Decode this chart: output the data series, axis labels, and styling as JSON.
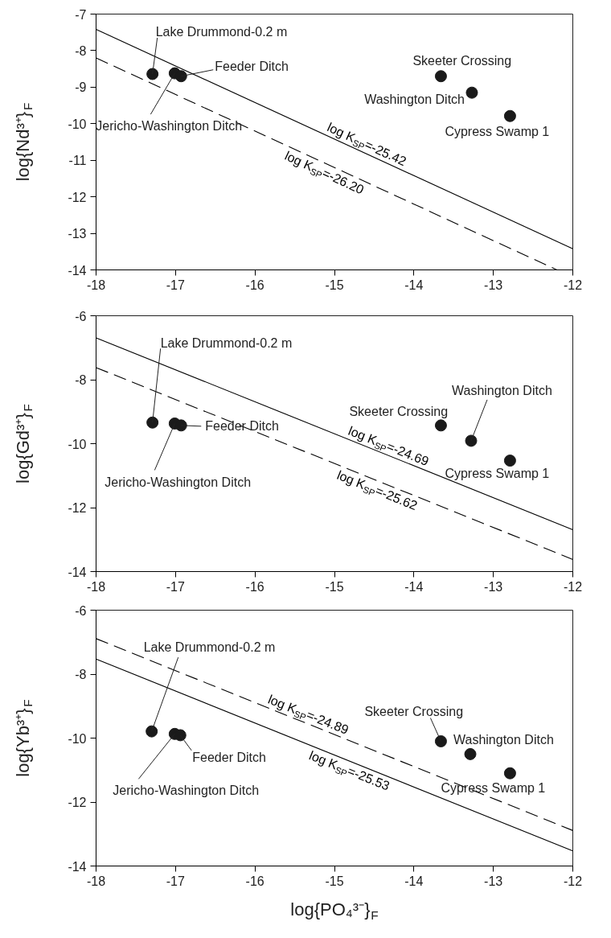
{
  "chart_data": [
    {
      "type": "scatter",
      "ylabel": "log{Nd³⁺}$_{F}$",
      "xlim": [
        -18,
        -12
      ],
      "xticks": [
        -18,
        -17,
        -16,
        -15,
        -14,
        -13,
        -12
      ],
      "ylim": [
        -14,
        -7
      ],
      "yticks": [
        -14,
        -13,
        -12,
        -11,
        -10,
        -9,
        -8,
        -7
      ],
      "grid": false,
      "series": [
        {
          "type": "scatter",
          "marker": "circle",
          "color": "#1a1a1a",
          "x": [
            -17.29,
            -17.01,
            -16.93,
            -13.66,
            -13.27,
            -12.79
          ],
          "values": [
            -8.64,
            -8.62,
            -8.7,
            -8.7,
            -9.15,
            -9.79
          ]
        },
        {
          "type": "line",
          "name": "log K$_{SP}$=-25.42",
          "color": "#000000",
          "line_style": "solid",
          "x": [
            -18,
            -12
          ],
          "values": [
            -7.42,
            -13.42
          ]
        },
        {
          "type": "line",
          "name": "log K$_{SP}$=-26.20",
          "color": "#000000",
          "line_style": "dashed",
          "x": [
            -18,
            -12.2
          ],
          "values": [
            -8.2,
            -14.0
          ]
        }
      ],
      "annotations": [
        {
          "text": "Lake Drummond-0.2 m",
          "x": -17.29,
          "y": -8.64
        },
        {
          "text": "Jericho-Washington Ditch",
          "x": -17.01,
          "y": -8.62
        },
        {
          "text": "Feeder Ditch",
          "x": -16.93,
          "y": -8.7
        },
        {
          "text": "Skeeter Crossing",
          "x": -13.66,
          "y": -8.7
        },
        {
          "text": "Washington Ditch",
          "x": -13.27,
          "y": -9.15
        },
        {
          "text": "Cypress Swamp 1",
          "x": -12.79,
          "y": -9.79
        }
      ]
    },
    {
      "type": "scatter",
      "ylabel": "log{Gd³⁺}$_{F}$",
      "xlim": [
        -18,
        -12
      ],
      "xticks": [
        -18,
        -17,
        -16,
        -15,
        -14,
        -13,
        -12
      ],
      "ylim": [
        -14,
        -6
      ],
      "yticks": [
        -14,
        -12,
        -10,
        -8,
        -6
      ],
      "grid": false,
      "series": [
        {
          "type": "scatter",
          "marker": "circle",
          "color": "#1a1a1a",
          "x": [
            -17.29,
            -17.01,
            -16.93,
            -13.66,
            -13.28,
            -12.79
          ],
          "values": [
            -9.34,
            -9.37,
            -9.43,
            -9.43,
            -9.91,
            -10.53
          ]
        },
        {
          "type": "line",
          "name": "log K$_{SP}$=-24.69",
          "color": "#000000",
          "line_style": "solid",
          "x": [
            -18,
            -12
          ],
          "values": [
            -6.69,
            -12.69
          ]
        },
        {
          "type": "line",
          "name": "log K$_{SP}$=-25.62",
          "color": "#000000",
          "line_style": "dashed",
          "x": [
            -18,
            -12
          ],
          "values": [
            -7.62,
            -13.62
          ]
        }
      ],
      "annotations": [
        {
          "text": "Lake Drummond-0.2 m",
          "x": -17.29,
          "y": -9.34
        },
        {
          "text": "Jericho-Washington Ditch",
          "x": -17.01,
          "y": -9.37
        },
        {
          "text": "Feeder Ditch",
          "x": -16.93,
          "y": -9.43
        },
        {
          "text": "Skeeter Crossing",
          "x": -13.66,
          "y": -9.43
        },
        {
          "text": "Washington Ditch",
          "x": -13.28,
          "y": -9.91
        },
        {
          "text": "Cypress Swamp 1",
          "x": -12.79,
          "y": -10.53
        }
      ]
    },
    {
      "type": "scatter",
      "ylabel": "log{Yb³⁺}$_{F}$",
      "xlabel": "log{PO₄³⁻}$_{F}$",
      "xlim": [
        -18,
        -12
      ],
      "xticks": [
        -18,
        -17,
        -16,
        -15,
        -14,
        -13,
        -12
      ],
      "ylim": [
        -14,
        -6
      ],
      "yticks": [
        -14,
        -12,
        -10,
        -8,
        -6
      ],
      "grid": false,
      "series": [
        {
          "type": "scatter",
          "marker": "circle",
          "color": "#1a1a1a",
          "x": [
            -17.3,
            -17.01,
            -16.94,
            -13.66,
            -13.29,
            -12.79
          ],
          "values": [
            -9.79,
            -9.87,
            -9.91,
            -10.1,
            -10.5,
            -11.1
          ]
        },
        {
          "type": "line",
          "name": "log K$_{SP}$=-25.53",
          "color": "#000000",
          "line_style": "solid",
          "x": [
            -18,
            -12
          ],
          "values": [
            -7.53,
            -13.53
          ]
        },
        {
          "type": "line",
          "name": "log K$_{SP}$=-24.89",
          "color": "#000000",
          "line_style": "dashed",
          "x": [
            -18,
            -12
          ],
          "values": [
            -6.89,
            -12.89
          ]
        }
      ],
      "annotations": [
        {
          "text": "Lake Drummond-0.2 m",
          "x": -17.3,
          "y": -9.79
        },
        {
          "text": "Jericho-Washington Ditch",
          "x": -17.01,
          "y": -9.87
        },
        {
          "text": "Feeder Ditch",
          "x": -16.94,
          "y": -9.91
        },
        {
          "text": "Skeeter Crossing",
          "x": -13.66,
          "y": -10.1
        },
        {
          "text": "Washington Ditch",
          "x": -13.29,
          "y": -10.5
        },
        {
          "text": "Cypress Swamp 1",
          "x": -12.79,
          "y": -11.1
        }
      ]
    }
  ]
}
